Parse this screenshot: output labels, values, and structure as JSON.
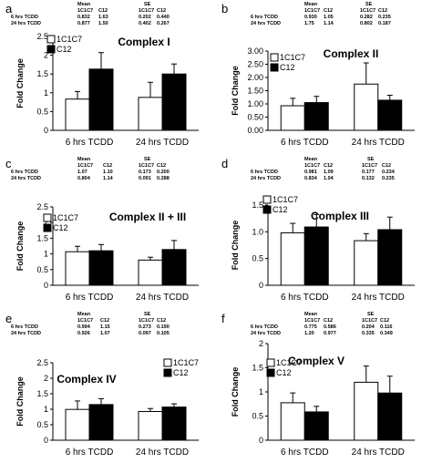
{
  "figure": {
    "panels": [
      {
        "label": "a",
        "table": {
          "mean_header": "Mean",
          "se_header": "SE",
          "cols": [
            "1C1C7",
            "C12",
            "1C1C7",
            "C12"
          ],
          "rows": [
            {
              "name": "6 hrs TCDD",
              "vals": [
                "0.832",
                "1.63",
                "0.202",
                "0.440"
              ]
            },
            {
              "name": "24 hrs TCDD",
              "vals": [
                "0.877",
                "1.50",
                "0.402",
                "0.267"
              ]
            }
          ]
        }
      },
      {
        "label": "b",
        "table": {
          "mean_header": "Mean",
          "se_header": "SE",
          "cols": [
            "1C1C7",
            "C12",
            "1C1C7",
            "C12"
          ],
          "rows": [
            {
              "name": "6 hrs TCDD",
              "vals": [
                "0.930",
                "1.05",
                "0.282",
                "0.235"
              ]
            },
            {
              "name": "24 hrs TCDD",
              "vals": [
                "1.75",
                "1.14",
                "0.802",
                "0.187"
              ]
            }
          ]
        }
      },
      {
        "label": "c",
        "table": {
          "mean_header": "Mean",
          "se_header": "SE",
          "cols": [
            "1C1C7",
            "C12",
            "1C1C7",
            "C12"
          ],
          "rows": [
            {
              "name": "6 hrs TCDD",
              "vals": [
                "1.07",
                "1.10",
                "0.173",
                "0.200"
              ]
            },
            {
              "name": "24 hrs TCDD",
              "vals": [
                "0.804",
                "1.14",
                "0.091",
                "0.288"
              ]
            }
          ]
        }
      },
      {
        "label": "d",
        "table": {
          "mean_header": "Mean",
          "se_header": "SE",
          "cols": [
            "1C1C7",
            "C12",
            "1C1C7",
            "C12"
          ],
          "rows": [
            {
              "name": "6 hrs TCDD",
              "vals": [
                "0.981",
                "1.09",
                "0.177",
                "0.234"
              ]
            },
            {
              "name": "24 hrs TCDD",
              "vals": [
                "0.834",
                "1.04",
                "0.132",
                "0.235"
              ]
            }
          ]
        }
      },
      {
        "label": "e",
        "table": {
          "mean_header": "Mean",
          "se_header": "SE",
          "cols": [
            "1C1C7",
            "C12",
            "1C1C7",
            "C12"
          ],
          "rows": [
            {
              "name": "6 hrs TCDD",
              "vals": [
                "0.994",
                "1.15",
                "0.273",
                "0.190"
              ]
            },
            {
              "name": "24 hrs TCDD",
              "vals": [
                "0.926",
                "1.07",
                "0.097",
                "0.105"
              ]
            }
          ]
        }
      },
      {
        "label": "f",
        "table": {
          "mean_header": "Mean",
          "se_header": "SE",
          "cols": [
            "1C1C7",
            "C12",
            "1C1C7",
            "C12"
          ],
          "rows": [
            {
              "name": "6 hrs TCDD",
              "vals": [
                "0.775",
                "0.586",
                "0.204",
                "0.116"
              ]
            },
            {
              "name": "24 hrs TCDD",
              "vals": [
                "1.20",
                "0.977",
                "0.335",
                "0.349"
              ]
            }
          ]
        }
      }
    ]
  },
  "chart_data": [
    {
      "type": "bar",
      "title": "Complex I",
      "ylabel": "Fold Change",
      "xlabel": "",
      "categories": [
        "6 hrs TCDD",
        "24 hrs TCDD"
      ],
      "ylim": [
        0,
        2.5
      ],
      "yticks": [
        "0",
        "0.5",
        "1",
        "1.5",
        "2",
        "2.5"
      ],
      "legend_position": "top-left",
      "series": [
        {
          "name": "1C1C7",
          "color": "#ffffff",
          "values": [
            0.832,
            0.877
          ],
          "errors": [
            0.202,
            0.402
          ]
        },
        {
          "name": "C12",
          "color": "#000000",
          "values": [
            1.63,
            1.5
          ],
          "errors": [
            0.44,
            0.267
          ]
        }
      ]
    },
    {
      "type": "bar",
      "title": "Complex II",
      "ylabel": "Fold Change",
      "xlabel": "",
      "categories": [
        "6 hrs TCDD",
        "24 hrs TCDD"
      ],
      "ylim": [
        0,
        3.0
      ],
      "yticks": [
        "0.00",
        "0.50",
        "1.00",
        "1.50",
        "2.00",
        "2.50",
        "3.00"
      ],
      "legend_position": "top-left",
      "series": [
        {
          "name": "1C1C7",
          "color": "#ffffff",
          "values": [
            0.93,
            1.75
          ],
          "errors": [
            0.282,
            0.802
          ]
        },
        {
          "name": "C12",
          "color": "#000000",
          "values": [
            1.05,
            1.14
          ],
          "errors": [
            0.235,
            0.187
          ]
        }
      ]
    },
    {
      "type": "bar",
      "title": "Complex II + III",
      "ylabel": "Fold Change",
      "xlabel": "",
      "categories": [
        "6 hrs TCDD",
        "24 hrs TCDD"
      ],
      "ylim": [
        0,
        2.5
      ],
      "yticks": [
        "0",
        "0.5",
        "1",
        "1.5",
        "2",
        "2.5"
      ],
      "legend_position": "top-left",
      "series": [
        {
          "name": "1C1C7",
          "color": "#ffffff",
          "values": [
            1.07,
            0.804
          ],
          "errors": [
            0.173,
            0.091
          ]
        },
        {
          "name": "C12",
          "color": "#000000",
          "values": [
            1.1,
            1.14
          ],
          "errors": [
            0.2,
            0.288
          ]
        }
      ]
    },
    {
      "type": "bar",
      "title": "Complex III",
      "ylabel": "Fold Change",
      "xlabel": "",
      "categories": [
        "6 hrs TCDD",
        "24 hrs TCDD"
      ],
      "ylim": [
        0,
        1.5
      ],
      "yticks": [
        "0",
        "0.5",
        "1.0",
        "1.5"
      ],
      "legend_position": "top-left",
      "series": [
        {
          "name": "1C1C7",
          "color": "#ffffff",
          "values": [
            0.981,
            0.834
          ],
          "errors": [
            0.177,
            0.132
          ]
        },
        {
          "name": "C12",
          "color": "#000000",
          "values": [
            1.09,
            1.04
          ],
          "errors": [
            0.234,
            0.235
          ]
        }
      ]
    },
    {
      "type": "bar",
      "title": "Complex IV",
      "ylabel": "Fold Change",
      "xlabel": "",
      "categories": [
        "6 hrs TCDD",
        "24 hrs TCDD"
      ],
      "ylim": [
        0,
        2.5
      ],
      "yticks": [
        "0",
        "0.5",
        "1",
        "1.5",
        "2",
        "2.5"
      ],
      "legend_position": "top-right",
      "series": [
        {
          "name": "1C1C7",
          "color": "#ffffff",
          "values": [
            0.994,
            0.926
          ],
          "errors": [
            0.273,
            0.097
          ]
        },
        {
          "name": "C12",
          "color": "#000000",
          "values": [
            1.15,
            1.07
          ],
          "errors": [
            0.19,
            0.105
          ]
        }
      ]
    },
    {
      "type": "bar",
      "title": "Complex V",
      "ylabel": "Fold Change",
      "xlabel": "",
      "categories": [
        "6 hrs TCDD",
        "24 hrs TCDD"
      ],
      "ylim": [
        0,
        2.0
      ],
      "yticks": [
        "0",
        "0.5",
        "1",
        "1.5",
        "2"
      ],
      "legend_position": "top-left",
      "series": [
        {
          "name": "1C1C7",
          "color": "#ffffff",
          "values": [
            0.775,
            1.2
          ],
          "errors": [
            0.204,
            0.335
          ]
        },
        {
          "name": "C12",
          "color": "#000000",
          "values": [
            0.586,
            0.977
          ],
          "errors": [
            0.116,
            0.349
          ]
        }
      ]
    }
  ]
}
